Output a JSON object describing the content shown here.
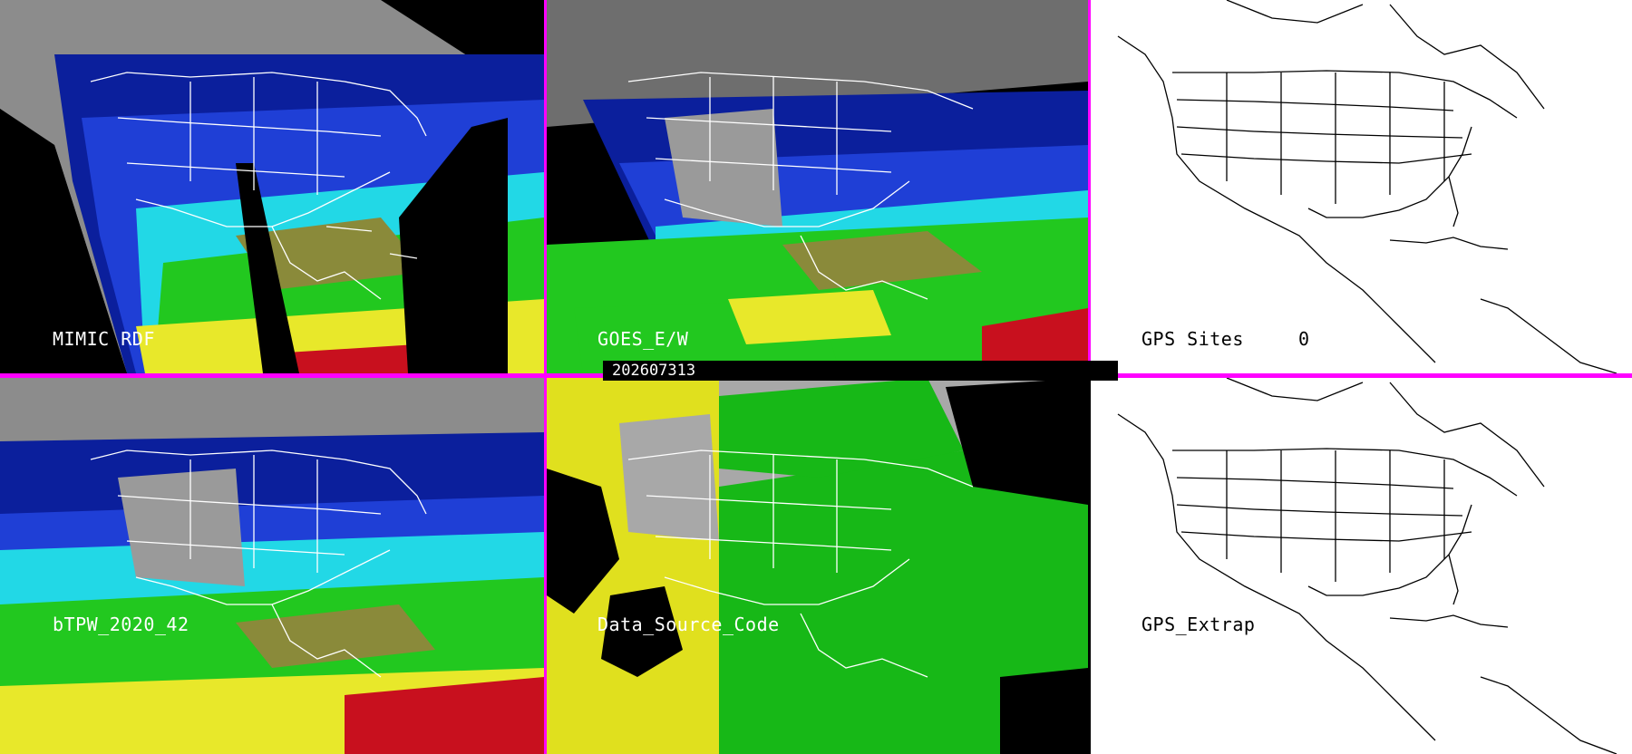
{
  "panels": {
    "mimic": {
      "label": "MIMIC RDF"
    },
    "goes": {
      "label": "GOES_E/W"
    },
    "gps_sites": {
      "label": "GPS Sites",
      "count": "0"
    },
    "btpw": {
      "label": "bTPW_2020_42"
    },
    "source": {
      "label": "Data_Source_Code"
    },
    "gps_extrap": {
      "label": "GPS_Extrap"
    }
  },
  "timestamp": "202607313",
  "colors": {
    "divider": "#ff00ff",
    "dry_gray": "#9a9a9a",
    "navy": "#0b1f9c",
    "blue": "#1f3fd6",
    "cyan": "#22d8e6",
    "green": "#22c81f",
    "yellow": "#e8e82a",
    "olive": "#8a8a3a",
    "red": "#c8101e",
    "source_yellow": "#e0e01e",
    "source_green": "#17b817",
    "source_gray": "#a8a8a8"
  }
}
